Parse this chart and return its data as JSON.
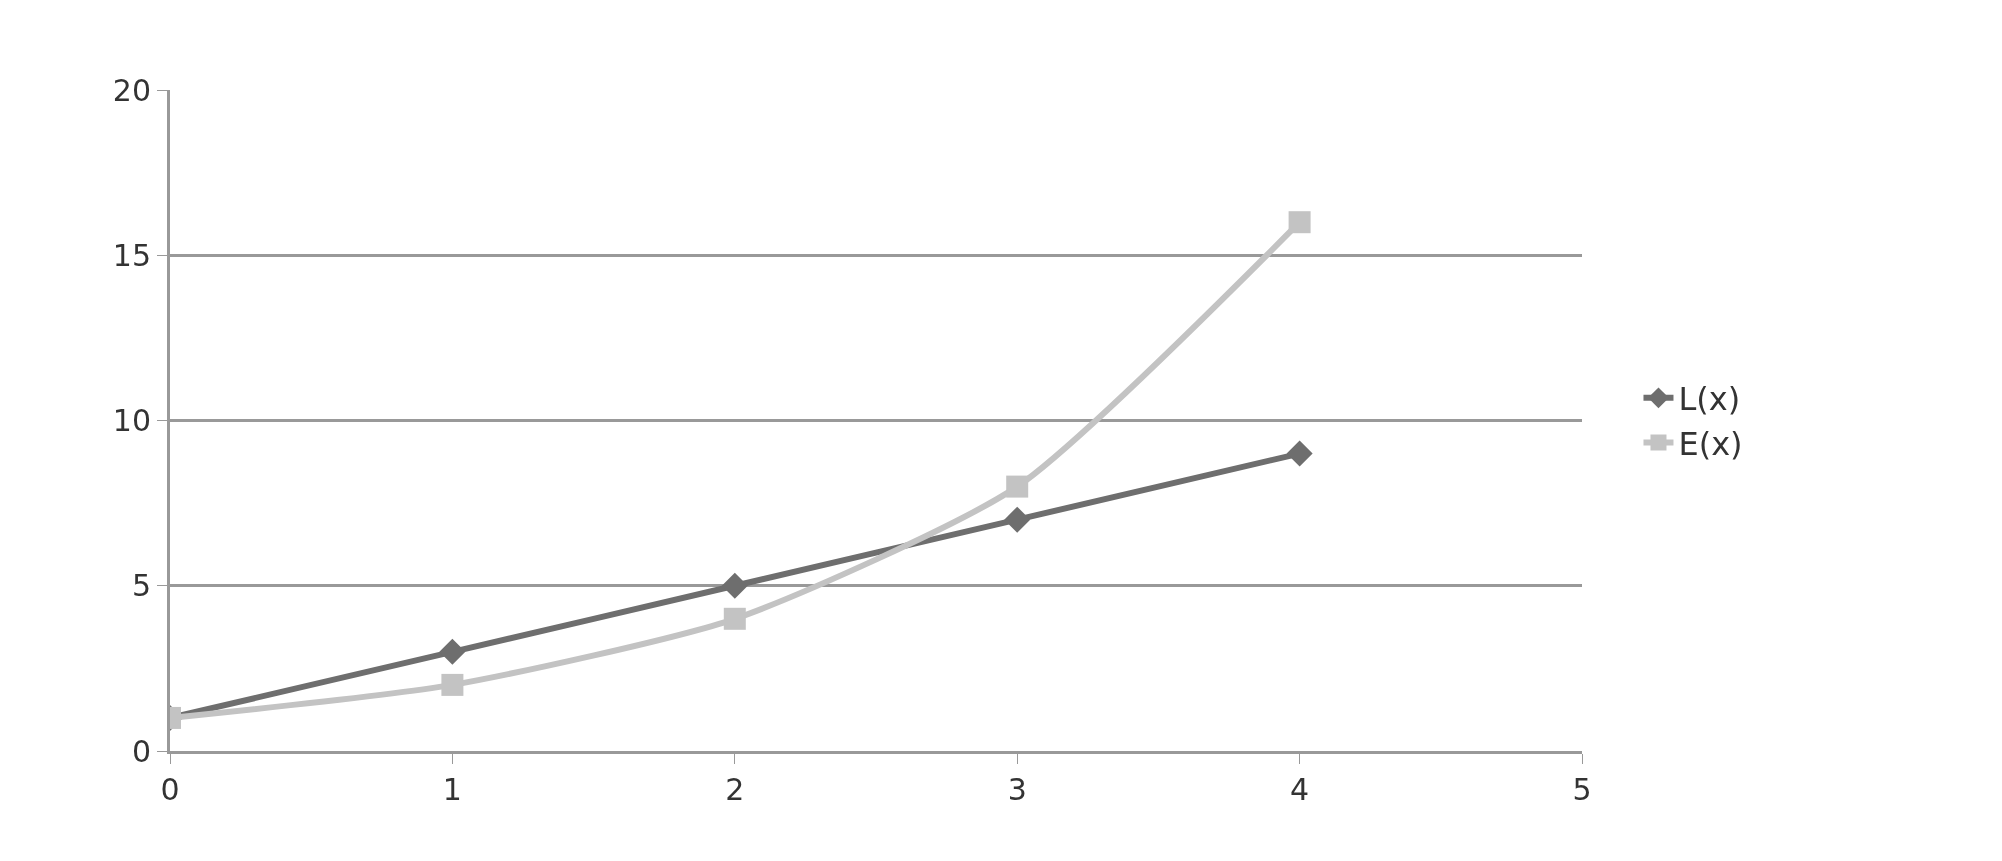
{
  "chart_data": {
    "type": "line",
    "x": [
      0,
      1,
      2,
      3,
      4
    ],
    "series": [
      {
        "name": "L(x)",
        "color": "#6e6e6e",
        "values": [
          1,
          3,
          5,
          7,
          9
        ],
        "marker": "diamond"
      },
      {
        "name": "E(x)",
        "color": "#c3c3c3",
        "values": [
          1,
          2,
          4,
          8,
          16
        ],
        "marker": "square"
      }
    ],
    "xlim": [
      0,
      5
    ],
    "xticks": [
      0,
      1,
      2,
      3,
      4,
      5
    ],
    "ylim": [
      0,
      20
    ],
    "yticks": [
      0,
      5,
      10,
      15,
      20
    ],
    "grid": "y",
    "legend": "right",
    "line_style": "solid"
  }
}
